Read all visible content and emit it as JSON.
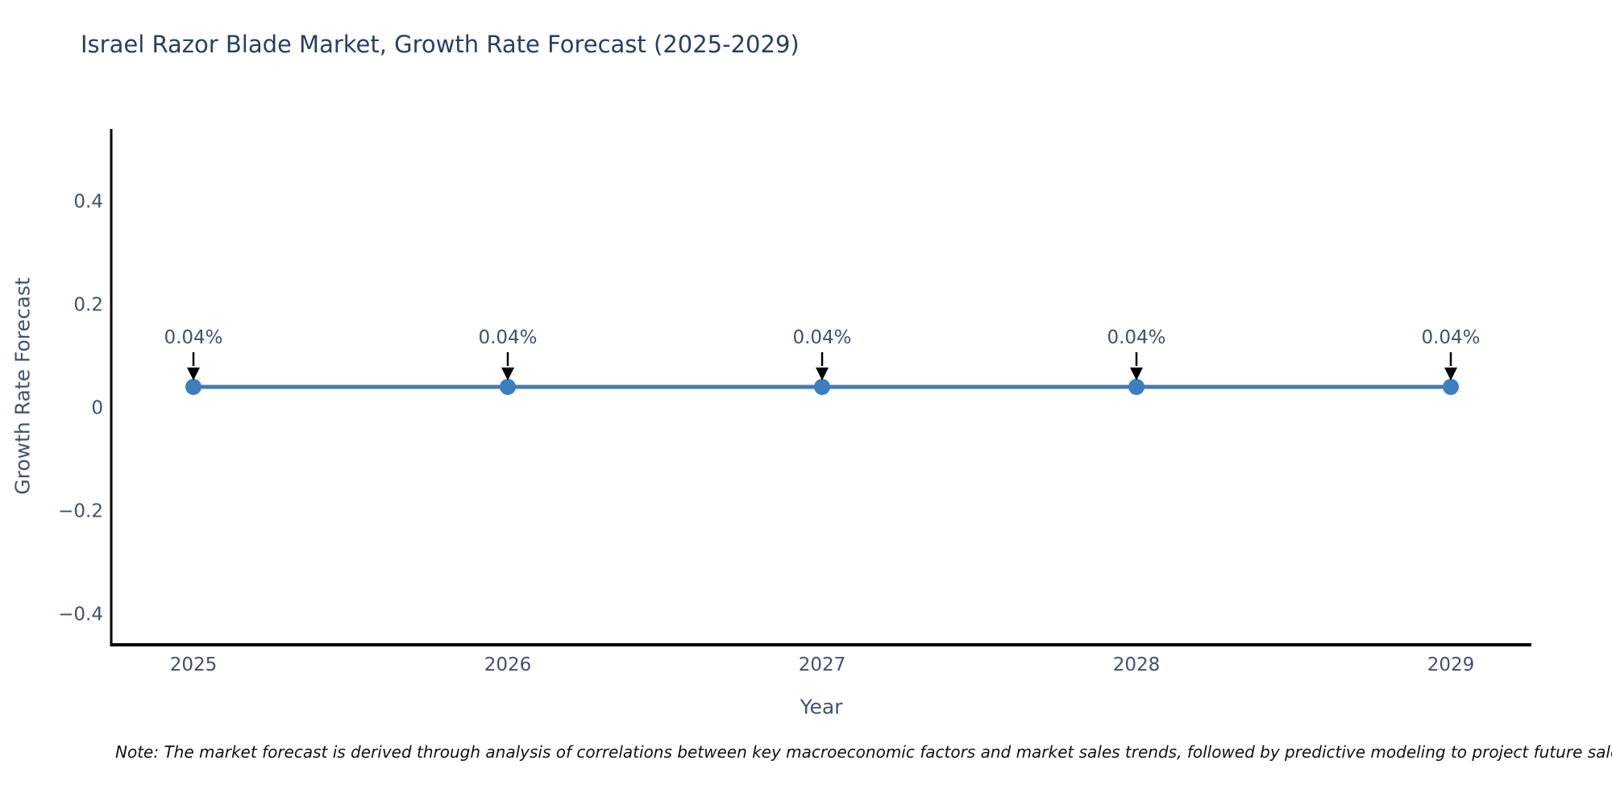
{
  "figure": {
    "title": "Israel Razor Blade Market, Growth Rate Forecast (2025-2029)",
    "note": "Note: The market forecast is derived through analysis of correlations between key macroeconomic factors and market sales trends, followed by predictive modeling to project future sales"
  },
  "chart_data": {
    "type": "line",
    "title": "Israel Razor Blade Market, Growth Rate Forecast (2025-2029)",
    "xlabel": "Year",
    "ylabel": "Growth Rate Forecast",
    "categories": [
      "2025",
      "2026",
      "2027",
      "2028",
      "2029"
    ],
    "series": [
      {
        "name": "Growth Rate Forecast",
        "values": [
          0.04,
          0.04,
          0.04,
          0.04,
          0.04
        ],
        "data_labels": [
          "0.04%",
          "0.04%",
          "0.04%",
          "0.04%",
          "0.04%"
        ]
      }
    ],
    "ylim": [
      -0.46,
      0.54
    ],
    "yticks": [
      {
        "value": 0.4,
        "label": "0.4"
      },
      {
        "value": 0.2,
        "label": "0.2"
      },
      {
        "value": 0,
        "label": "0"
      },
      {
        "value": -0.2,
        "label": "−0.2"
      },
      {
        "value": -0.4,
        "label": "−0.4"
      }
    ],
    "grid": false,
    "legend": null,
    "annotation_arrows": "down",
    "colors": {
      "line": "#4a7ba7",
      "marker": "#3c7ebf",
      "axis": "#000000",
      "arrow": "#000000",
      "tick_text": "#42526b",
      "title_text": "#2a3f5f"
    }
  }
}
